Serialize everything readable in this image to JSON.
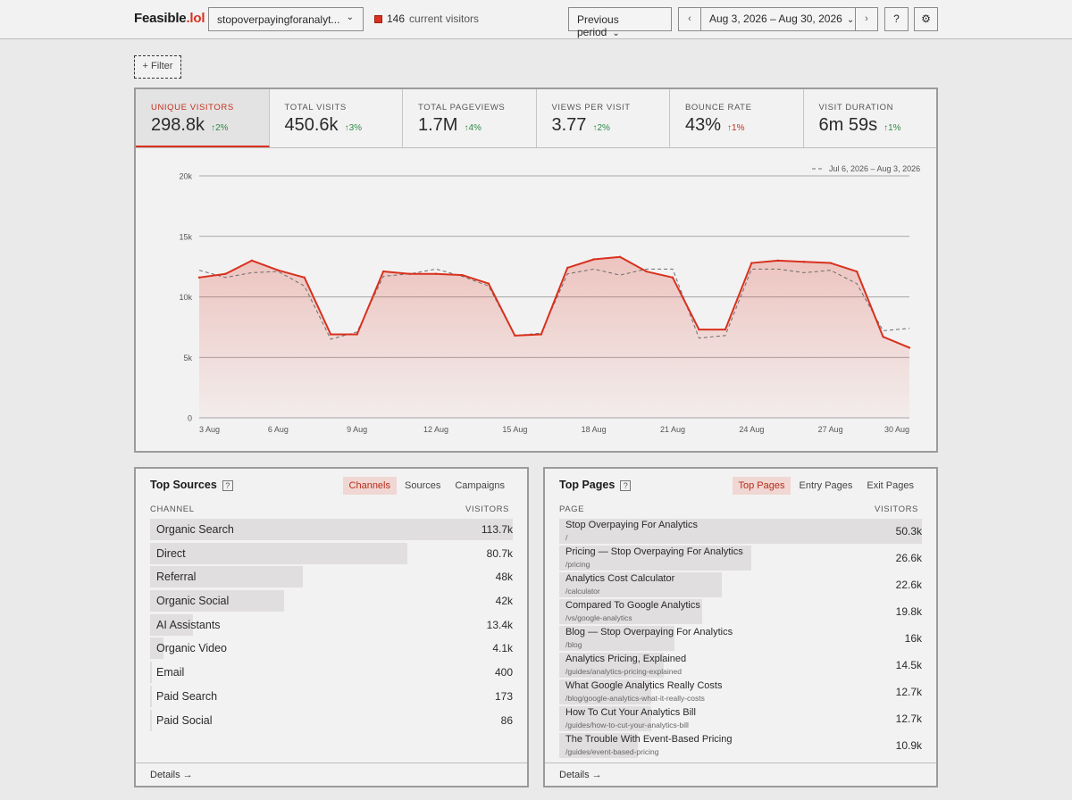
{
  "header": {
    "logo_main": "Feasible",
    "logo_dot": ".lol",
    "site": "stopoverpayingforanalyt...",
    "live_count": "146",
    "live_label": "current visitors",
    "compare_label": "Previous period",
    "prev_arrow": "‹",
    "next_arrow": "›",
    "date_range": "Aug 3, 2026 – Aug 30, 2026",
    "help_label": "?",
    "settings_icon": "⚙",
    "chevron": "⌄"
  },
  "filter": {
    "label": "+ Filter"
  },
  "stats": [
    {
      "label": "Unique Visitors",
      "value": "298.8k",
      "change": "↑2%",
      "dir": "up"
    },
    {
      "label": "Total Visits",
      "value": "450.6k",
      "change": "↑3%",
      "dir": "up"
    },
    {
      "label": "Total Pageviews",
      "value": "1.7M",
      "change": "↑4%",
      "dir": "up"
    },
    {
      "label": "Views Per Visit",
      "value": "3.77",
      "change": "↑2%",
      "dir": "up"
    },
    {
      "label": "Bounce Rate",
      "value": "43%",
      "change": "↑1%",
      "dir": "down"
    },
    {
      "label": "Visit Duration",
      "value": "6m 59s",
      "change": "↑1%",
      "dir": "up"
    }
  ],
  "chart_data": {
    "type": "area",
    "legend": "Jul 6, 2026 – Aug 3, 2026",
    "legend_position": "top-right",
    "ylim": [
      0,
      20000
    ],
    "yticks": [
      "0",
      "5k",
      "10k",
      "15k",
      "20k"
    ],
    "ytick_values": [
      0,
      5000,
      10000,
      15000,
      20000
    ],
    "xtick_labels": [
      "3 Aug",
      "6 Aug",
      "9 Aug",
      "12 Aug",
      "15 Aug",
      "18 Aug",
      "21 Aug",
      "24 Aug",
      "27 Aug",
      "30 Aug"
    ],
    "x": [
      "3 Aug",
      "4 Aug",
      "5 Aug",
      "6 Aug",
      "7 Aug",
      "8 Aug",
      "9 Aug",
      "10 Aug",
      "11 Aug",
      "12 Aug",
      "13 Aug",
      "14 Aug",
      "15 Aug",
      "16 Aug",
      "17 Aug",
      "18 Aug",
      "19 Aug",
      "20 Aug",
      "21 Aug",
      "22 Aug",
      "23 Aug",
      "24 Aug",
      "25 Aug",
      "26 Aug",
      "27 Aug",
      "28 Aug",
      "29 Aug",
      "30 Aug"
    ],
    "grid": true,
    "series": [
      {
        "values": [
          11600,
          11900,
          13000,
          12200,
          11600,
          6900,
          6900,
          12100,
          11900,
          11900,
          11800,
          11100,
          6800,
          6900,
          12400,
          13100,
          13300,
          12100,
          11600,
          7300,
          7300,
          12800,
          13000,
          12900,
          12800,
          12100,
          6700,
          5800
        ],
        "color": "#d8311e",
        "style": "solid"
      },
      {
        "name": "Jul 6, 2026 – Aug 3, 2026",
        "values": [
          12200,
          11600,
          12000,
          12100,
          10900,
          6500,
          7100,
          11700,
          11900,
          12300,
          11700,
          10900,
          6800,
          7000,
          11900,
          12300,
          11800,
          12300,
          12300,
          6600,
          6800,
          12300,
          12300,
          12000,
          12200,
          11100,
          7200,
          7400
        ],
        "color": "#6d6d6d",
        "style": "dashed"
      }
    ]
  },
  "sources": {
    "title": "Top Sources",
    "help": "?",
    "tabs": [
      "Channels",
      "Sources",
      "Campaigns"
    ],
    "col_left": "Channel",
    "col_right": "Visitors",
    "rows": [
      {
        "name": "Organic Search",
        "count": "113.7k",
        "value": 113700
      },
      {
        "name": "Direct",
        "count": "80.7k",
        "value": 80700
      },
      {
        "name": "Referral",
        "count": "48k",
        "value": 48000
      },
      {
        "name": "Organic Social",
        "count": "42k",
        "value": 42000
      },
      {
        "name": "AI Assistants",
        "count": "13.4k",
        "value": 13400
      },
      {
        "name": "Organic Video",
        "count": "4.1k",
        "value": 4100
      },
      {
        "name": "Email",
        "count": "400",
        "value": 400
      },
      {
        "name": "Paid Search",
        "count": "173",
        "value": 173
      },
      {
        "name": "Paid Social",
        "count": "86",
        "value": 86
      }
    ],
    "details": "Details →"
  },
  "pages": {
    "title": "Top Pages",
    "help": "?",
    "tabs": [
      "Top Pages",
      "Entry Pages",
      "Exit Pages"
    ],
    "col_left": "Page",
    "col_right": "Visitors",
    "rows": [
      {
        "name": "Stop Overpaying For Analytics",
        "path": "/",
        "count": "50.3k",
        "value": 50300
      },
      {
        "name": "Pricing — Stop Overpaying For Analytics",
        "path": "/pricing",
        "count": "26.6k",
        "value": 26600
      },
      {
        "name": "Analytics Cost Calculator",
        "path": "/calculator",
        "count": "22.6k",
        "value": 22600
      },
      {
        "name": "Compared To Google Analytics",
        "path": "/vs/google-analytics",
        "count": "19.8k",
        "value": 19800
      },
      {
        "name": "Blog — Stop Overpaying For Analytics",
        "path": "/blog",
        "count": "16k",
        "value": 16000
      },
      {
        "name": "Analytics Pricing, Explained",
        "path": "/guides/analytics-pricing-explained",
        "count": "14.5k",
        "value": 14500
      },
      {
        "name": "What Google Analytics Really Costs",
        "path": "/blog/google-analytics-what-it-really-costs",
        "count": "12.7k",
        "value": 12700
      },
      {
        "name": "How To Cut Your Analytics Bill",
        "path": "/guides/how-to-cut-your-analytics-bill",
        "count": "12.7k",
        "value": 12700
      },
      {
        "name": "The Trouble With Event-Based Pricing",
        "path": "/guides/event-based-pricing",
        "count": "10.9k",
        "value": 10900
      }
    ],
    "details": "Details →"
  }
}
